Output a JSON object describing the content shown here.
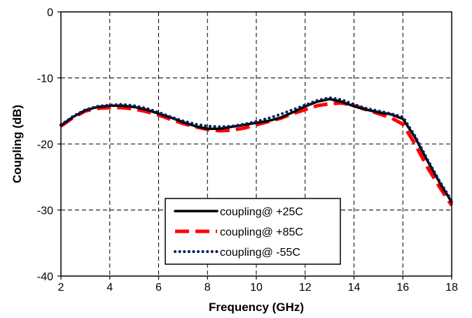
{
  "chart_data": {
    "type": "line",
    "title": "",
    "xlabel": "Frequency (GHz)",
    "ylabel": "Coupling (dB)",
    "xlim": [
      2,
      18
    ],
    "ylim": [
      -40,
      0
    ],
    "xticks": [
      2,
      4,
      6,
      8,
      10,
      12,
      14,
      16,
      18
    ],
    "yticks": [
      0,
      -10,
      -20,
      -30,
      -40
    ],
    "xtick_labels": [
      "2",
      "4",
      "6",
      "8",
      "10",
      "12",
      "14",
      "16",
      "18"
    ],
    "ytick_labels": [
      "0",
      "-10",
      "-20",
      "-30",
      "-40"
    ],
    "grid": true,
    "legend_position": "bottom-center",
    "series": [
      {
        "name": "coupling@ +25C",
        "color": "#000000",
        "style": "solid",
        "x": [
          2,
          2.5,
          3,
          3.5,
          4,
          4.5,
          5,
          5.5,
          6,
          6.5,
          7,
          7.5,
          8,
          8.5,
          9,
          9.5,
          10,
          10.5,
          11,
          11.5,
          12,
          12.5,
          13,
          13.5,
          14,
          14.5,
          15,
          15.5,
          16,
          16.5,
          17,
          17.5,
          18
        ],
        "values": [
          -17.2,
          -15.9,
          -14.9,
          -14.4,
          -14.2,
          -14.2,
          -14.4,
          -14.8,
          -15.4,
          -16.0,
          -16.7,
          -17.3,
          -17.7,
          -17.7,
          -17.4,
          -17.1,
          -16.8,
          -16.5,
          -16.0,
          -15.2,
          -14.3,
          -13.6,
          -13.2,
          -13.6,
          -14.3,
          -14.8,
          -15.2,
          -15.5,
          -16.2,
          -19.0,
          -22.5,
          -25.8,
          -28.8
        ]
      },
      {
        "name": "coupling@ +85C",
        "color": "#ff0000",
        "style": "dashed",
        "x": [
          2,
          2.5,
          3,
          3.5,
          4,
          4.5,
          5,
          5.5,
          6,
          6.5,
          7,
          7.5,
          8,
          8.5,
          9,
          9.5,
          10,
          10.5,
          11,
          11.5,
          12,
          12.5,
          13,
          13.5,
          14,
          14.5,
          15,
          15.5,
          16,
          16.5,
          17,
          17.5,
          18
        ],
        "values": [
          -17.3,
          -16.0,
          -15.0,
          -14.6,
          -14.5,
          -14.5,
          -14.7,
          -15.1,
          -15.6,
          -16.3,
          -16.9,
          -17.4,
          -17.8,
          -18.0,
          -17.9,
          -17.6,
          -17.1,
          -16.6,
          -16.1,
          -15.4,
          -14.8,
          -14.2,
          -13.9,
          -13.8,
          -14.2,
          -14.8,
          -15.4,
          -16.0,
          -17.0,
          -20.0,
          -23.5,
          -26.5,
          -29.3
        ]
      },
      {
        "name": "coupling@ -55C",
        "color": "#002060",
        "style": "dotted",
        "x": [
          2,
          2.5,
          3,
          3.5,
          4,
          4.5,
          5,
          5.5,
          6,
          6.5,
          7,
          7.5,
          8,
          8.5,
          9,
          9.5,
          10,
          10.5,
          11,
          11.5,
          12,
          12.5,
          13,
          13.5,
          14,
          14.5,
          15,
          15.5,
          16,
          16.5,
          17,
          17.5,
          18
        ],
        "values": [
          -17.1,
          -15.8,
          -14.8,
          -14.3,
          -14.1,
          -14.0,
          -14.2,
          -14.6,
          -15.2,
          -15.9,
          -16.5,
          -17.0,
          -17.3,
          -17.4,
          -17.3,
          -17.0,
          -16.6,
          -16.1,
          -15.5,
          -14.8,
          -14.1,
          -13.4,
          -13.0,
          -13.3,
          -14.0,
          -14.6,
          -15.0,
          -15.4,
          -15.9,
          -18.8,
          -22.3,
          -25.6,
          -28.6
        ]
      }
    ]
  }
}
